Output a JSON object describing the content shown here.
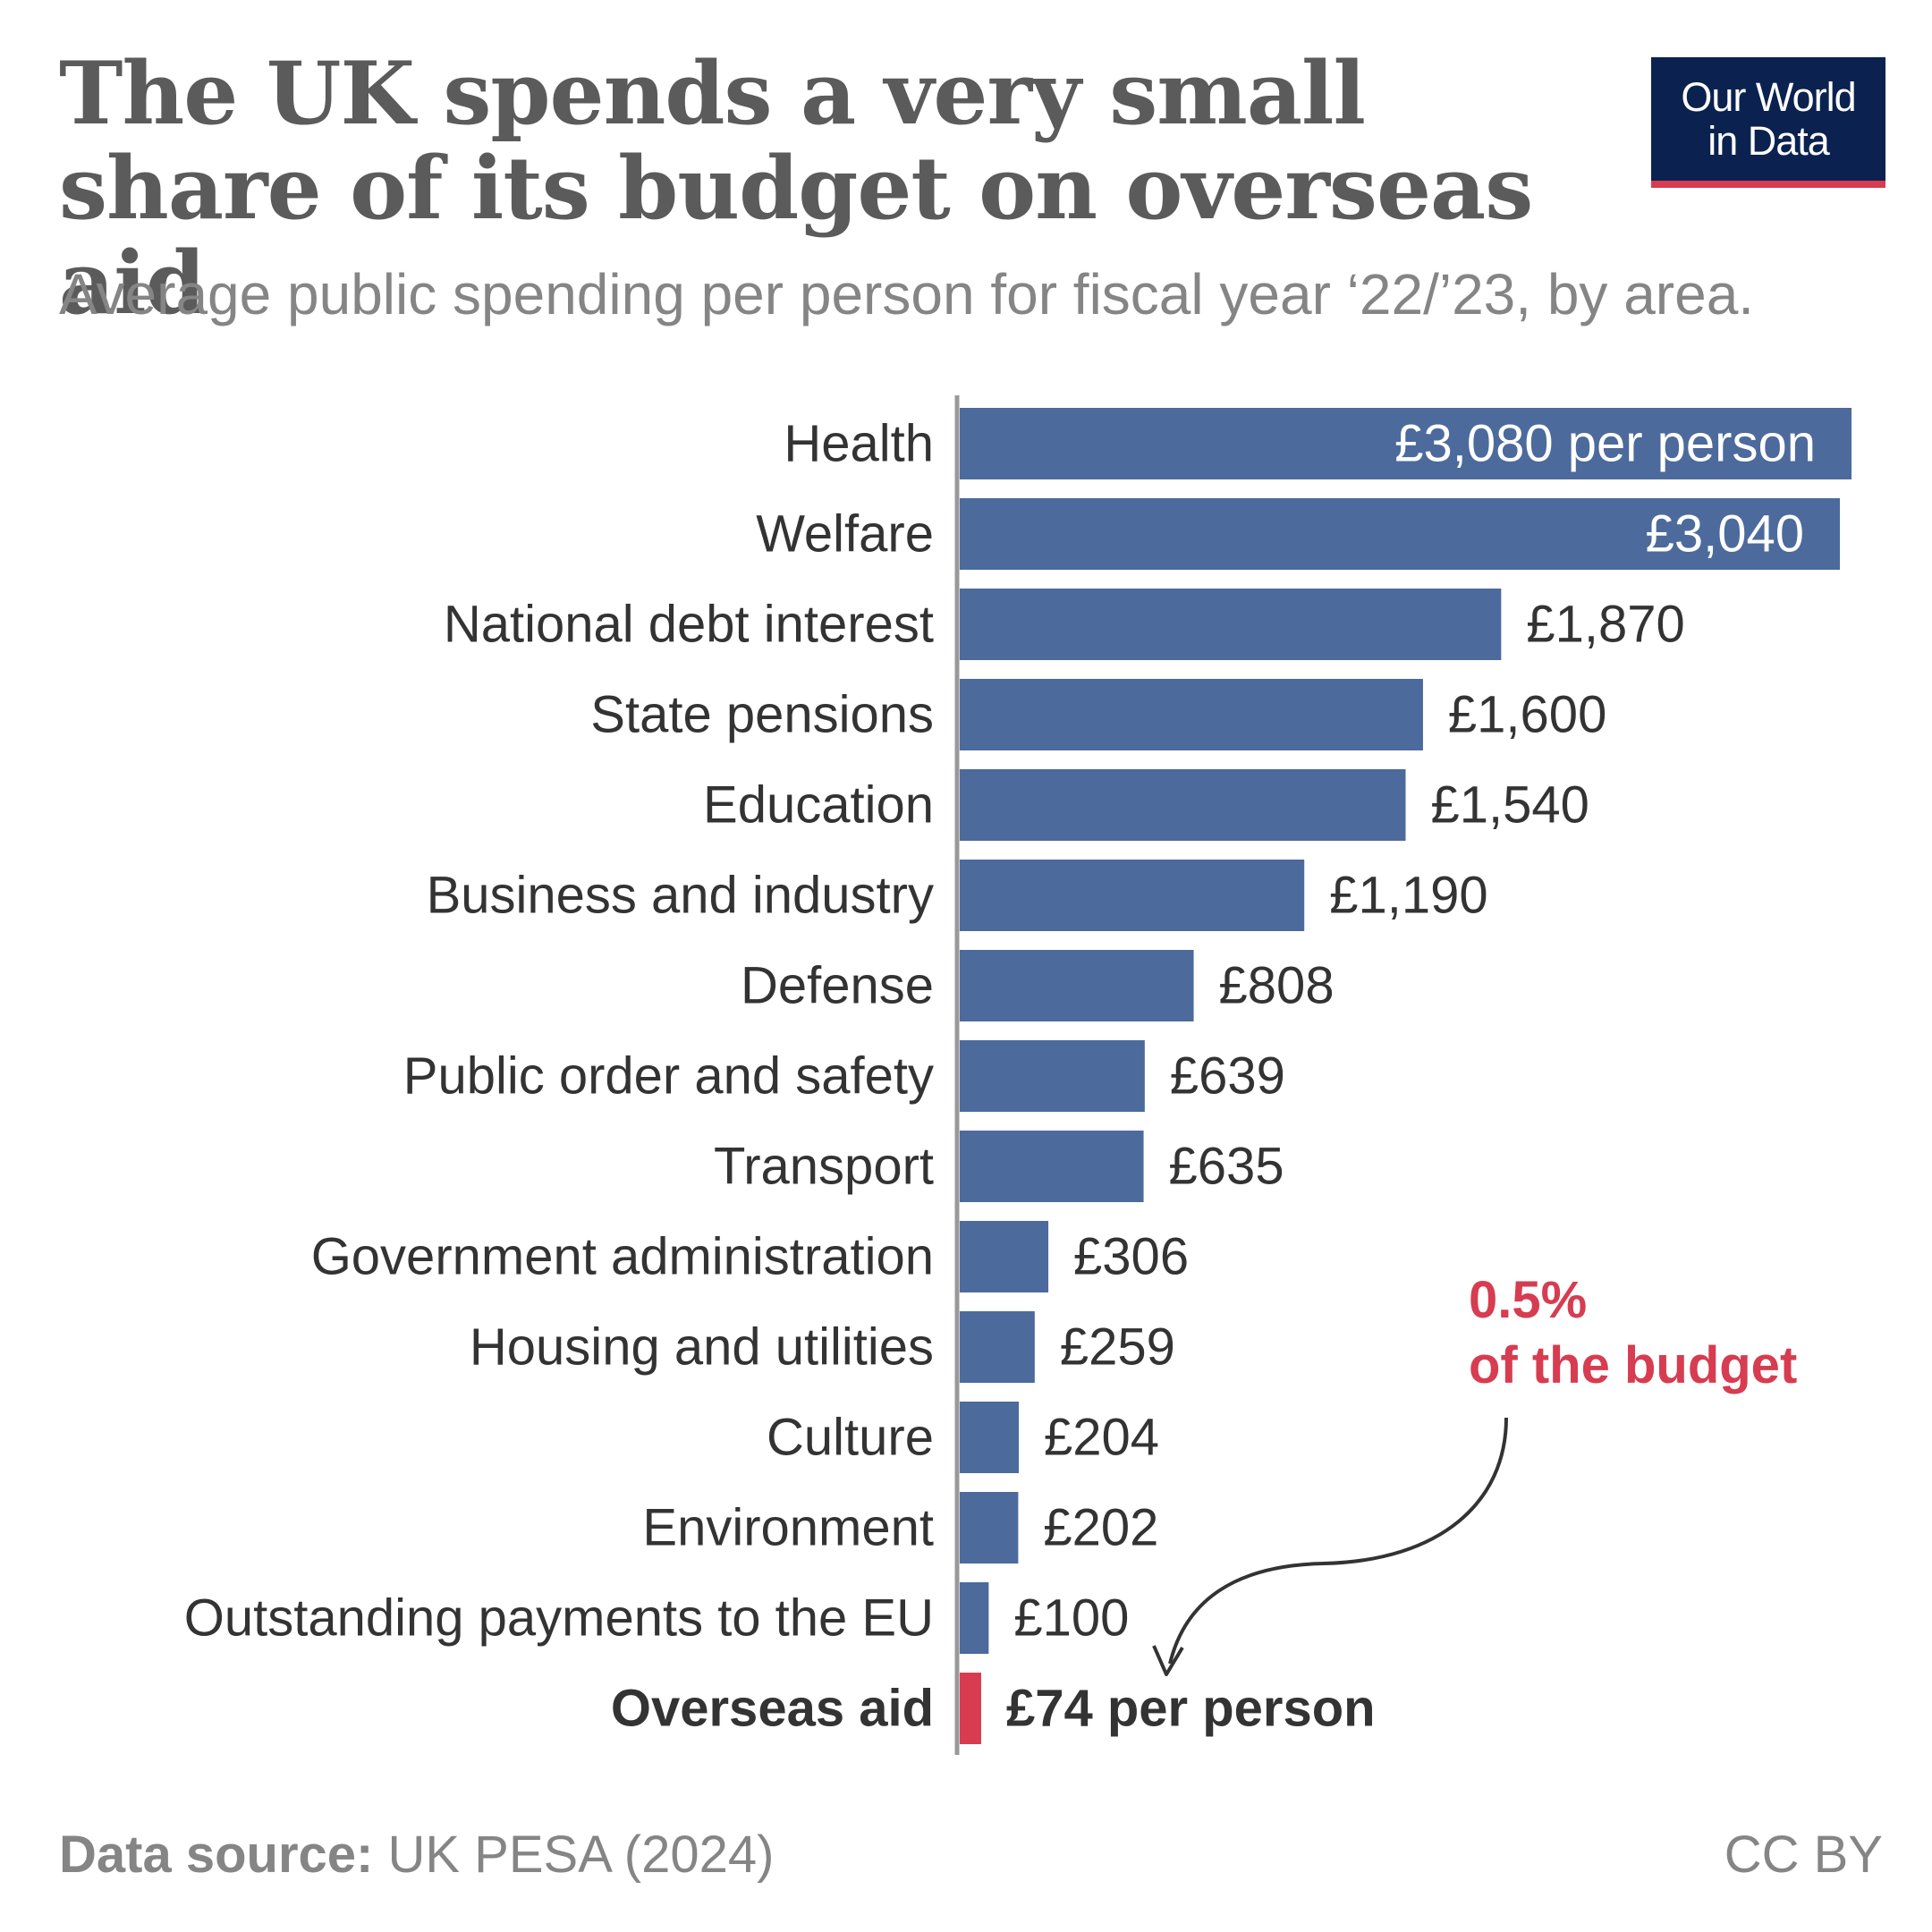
{
  "title": "The UK spends a very small share of its budget on overseas aid",
  "subtitle": "Average public spending per person for fiscal year ‘22/’23, by area.",
  "logo": {
    "line1": "Our World",
    "line2": "in Data"
  },
  "source_label": "Data source:",
  "source_value": "UK PESA (2024)",
  "license": "CC BY",
  "annotation": {
    "line1": "0.5%",
    "line2": "of the budget"
  },
  "colors": {
    "bar": "#4c6a9c",
    "highlight": "#d73c50",
    "logo_bg": "#0b2250",
    "axis": "#999999",
    "label": "#333333"
  },
  "chart_data": {
    "type": "bar",
    "orientation": "horizontal",
    "categories": [
      "Health",
      "Welfare",
      "National debt interest",
      "State pensions",
      "Education",
      "Business and industry",
      "Defense",
      "Public order and safety",
      "Transport",
      "Government administration",
      "Housing and utilities",
      "Culture",
      "Environment",
      "Outstanding payments to the EU",
      "Overseas aid"
    ],
    "values": [
      3080,
      3040,
      1870,
      1600,
      1540,
      1190,
      808,
      639,
      635,
      306,
      259,
      204,
      202,
      100,
      74
    ],
    "value_labels": [
      "£3,080 per person",
      "£3,040",
      "£1,870",
      "£1,600",
      "£1,540",
      "£1,190",
      "£808",
      "£639",
      "£635",
      "£306",
      "£259",
      "£204",
      "£202",
      "£100",
      "£74 per person"
    ],
    "highlight_category": "Overseas aid",
    "inside_label_categories": [
      "Health",
      "Welfare"
    ]
  }
}
